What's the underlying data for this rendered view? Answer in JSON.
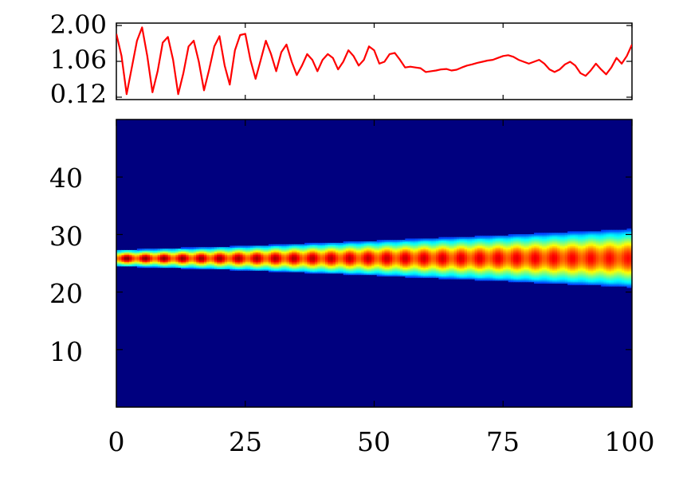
{
  "chart_data": [
    {
      "type": "line",
      "title": "",
      "xlabel": "",
      "ylabel": "",
      "xlim": [
        0,
        100
      ],
      "ylim": [
        0.12,
        2.0
      ],
      "yticks": [
        "2.00",
        "1.06",
        "0.12"
      ],
      "color": "#ff0000",
      "series": [
        {
          "x": [
            0,
            1,
            2,
            3,
            4,
            5,
            6,
            7,
            8,
            9,
            10,
            11,
            12,
            13,
            14,
            15,
            16,
            17,
            18,
            19,
            20,
            21,
            22,
            23,
            24,
            25,
            26,
            27,
            28,
            29,
            30,
            31,
            32,
            33,
            34,
            35,
            36,
            37,
            38,
            39,
            40,
            41,
            42,
            43,
            44,
            45,
            46,
            47,
            48,
            49,
            50,
            51,
            52,
            53,
            54,
            55,
            56,
            57,
            58,
            59,
            60,
            61,
            62,
            63,
            64,
            65,
            66,
            67,
            68,
            69,
            70,
            71,
            72,
            73,
            74,
            75,
            76,
            77,
            78,
            79,
            80,
            81,
            82,
            83,
            84,
            85,
            86,
            87,
            88,
            89,
            90,
            91,
            92,
            93,
            94,
            95,
            96,
            97,
            98,
            99,
            100
          ],
          "y": [
            1.78,
            1.2,
            0.2,
            0.9,
            1.6,
            1.95,
            1.2,
            0.25,
            0.8,
            1.55,
            1.7,
            1.1,
            0.2,
            0.75,
            1.45,
            1.6,
            1.05,
            0.3,
            0.85,
            1.45,
            1.72,
            0.95,
            0.45,
            1.35,
            1.75,
            1.78,
            1.1,
            0.6,
            1.1,
            1.6,
            1.25,
            0.8,
            1.3,
            1.5,
            1.05,
            0.7,
            0.95,
            1.25,
            1.1,
            0.8,
            1.1,
            1.25,
            1.15,
            0.85,
            1.05,
            1.35,
            1.2,
            0.95,
            1.1,
            1.45,
            1.35,
            1.0,
            1.05,
            1.25,
            1.28,
            1.1,
            0.9,
            0.92,
            0.9,
            0.88,
            0.78,
            0.8,
            0.82,
            0.85,
            0.86,
            0.82,
            0.84,
            0.9,
            0.95,
            0.98,
            1.02,
            1.05,
            1.08,
            1.1,
            1.15,
            1.2,
            1.22,
            1.18,
            1.1,
            1.05,
            1.0,
            1.05,
            1.1,
            1.0,
            0.85,
            0.78,
            0.85,
            0.98,
            1.05,
            0.95,
            0.75,
            0.68,
            0.82,
            1.0,
            0.85,
            0.72,
            0.9,
            1.15,
            1.0,
            1.2,
            1.5
          ]
        }
      ]
    },
    {
      "type": "heatmap",
      "title": "",
      "xlabel": "",
      "ylabel": "",
      "xlim": [
        0,
        100
      ],
      "ylim": [
        0,
        50
      ],
      "xticks": [
        "0",
        "25",
        "50",
        "75",
        "100"
      ],
      "yticks": [
        "10",
        "20",
        "30",
        "40"
      ],
      "colormap": "jet",
      "background": "#00007f",
      "band_center_y": 25.8,
      "band_halfwidth_start": 1.2,
      "band_halfwidth_end": 4.2,
      "oscillation_period_x": 3.6,
      "peak_start": 1.0,
      "peak_end": 0.85
    }
  ]
}
